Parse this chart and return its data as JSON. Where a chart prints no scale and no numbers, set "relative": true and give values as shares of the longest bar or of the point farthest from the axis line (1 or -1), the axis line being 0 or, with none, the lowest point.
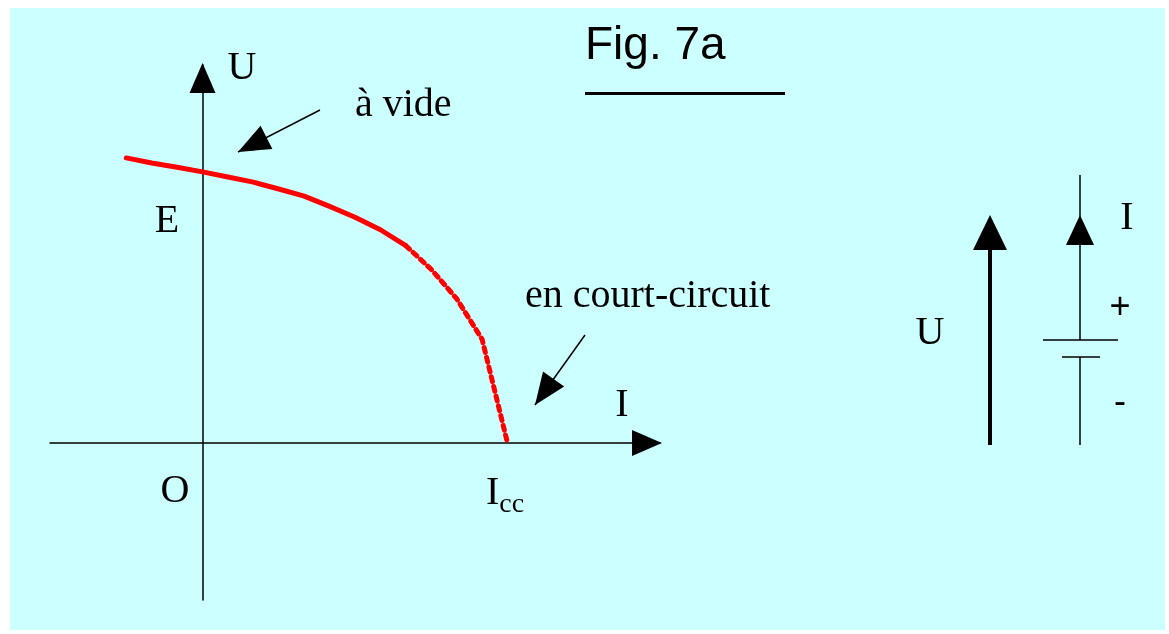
{
  "chart_data": {
    "type": "line",
    "title": "Fig. 7a",
    "xlabel": "I",
    "ylabel": "U",
    "relative": true,
    "marker": "none",
    "categories": [
      null,
      null,
      null,
      null,
      null,
      null,
      null,
      null,
      null,
      null,
      null,
      null,
      null,
      null,
      null,
      null,
      null,
      null,
      null,
      null,
      null,
      null,
      null,
      null,
      null
    ],
    "series": [
      {
        "color": "#ff0000",
        "line_style": "solid",
        "values": [
          null,
          null,
          null,
          1,
          0.982,
          0.967,
          0.951,
          0.933,
          0.915,
          0.891,
          0.866,
          0.83,
          0.792,
          0.748,
          0.692,
          null,
          null,
          null,
          null,
          null,
          null,
          null,
          null,
          null,
          null
        ]
      },
      {
        "color": "#ff0000",
        "line_style": "dotted",
        "values": [
          null,
          null,
          null,
          null,
          null,
          null,
          null,
          null,
          null,
          null,
          null,
          null,
          null,
          null,
          0.692,
          0.609,
          0.506,
          0.364,
          0,
          null,
          null,
          null,
          null,
          null,
          null
        ]
      }
    ],
    "annotations": [
      "à vide",
      "en court-circuit",
      "O",
      "E",
      "I$_{cc}$",
      "U",
      "I",
      "+",
      "-"
    ]
  }
}
